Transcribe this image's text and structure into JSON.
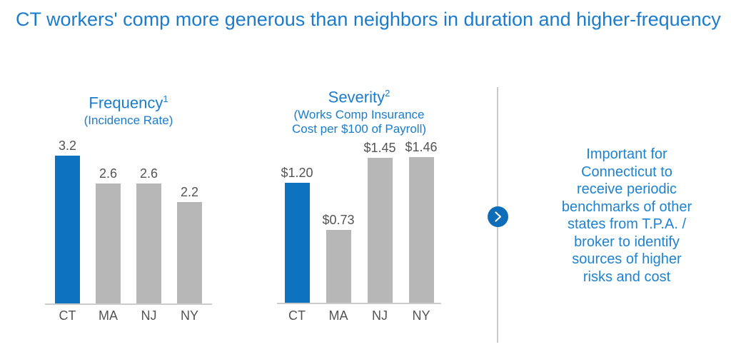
{
  "title": "CT workers' comp more generous than neighbors in duration and higher-frequency",
  "colors": {
    "accent_blue": "#0d73c0",
    "bar_gray": "#b7b7b7",
    "heading_blue": "#1b7ccd",
    "callout_blue": "#1e82d2",
    "label_gray": "#545454",
    "divider_gray": "#c9c9c9",
    "arrow_circle_blue": "#0d6db8"
  },
  "chart_data": [
    {
      "type": "bar",
      "title": "Frequency",
      "title_superscript": "1",
      "subtitle_lines": [
        "(Incidence Rate)"
      ],
      "categories": [
        "CT",
        "MA",
        "NJ",
        "NY"
      ],
      "values": [
        3.2,
        2.6,
        2.6,
        2.2
      ],
      "value_labels": [
        "3.2",
        "2.6",
        "2.6",
        "2.2"
      ],
      "bar_colors": [
        "#0d73c0",
        "#b7b7b7",
        "#b7b7b7",
        "#b7b7b7"
      ],
      "ylim": [
        0,
        3.2
      ],
      "grid": false,
      "legend": false
    },
    {
      "type": "bar",
      "title": "Severity",
      "title_superscript": "2",
      "subtitle_lines": [
        "(Works Comp Insurance",
        "Cost per $100 of Payroll)"
      ],
      "categories": [
        "CT",
        "MA",
        "NJ",
        "NY"
      ],
      "values": [
        1.2,
        0.73,
        1.45,
        1.46
      ],
      "value_labels": [
        "$1.20",
        "$0.73",
        "$1.45",
        "$1.46"
      ],
      "bar_colors": [
        "#0d73c0",
        "#b7b7b7",
        "#b7b7b7",
        "#b7b7b7"
      ],
      "ylim": [
        0,
        1.46
      ],
      "grid": false,
      "legend": false
    }
  ],
  "arrow_icon": "chevron-right-icon",
  "callout": {
    "lines": [
      "Important for",
      "Connecticut to",
      "receive periodic",
      "benchmarks of other",
      "states from T.P.A. /",
      "broker to identify",
      "sources of higher",
      "risks and cost"
    ]
  }
}
